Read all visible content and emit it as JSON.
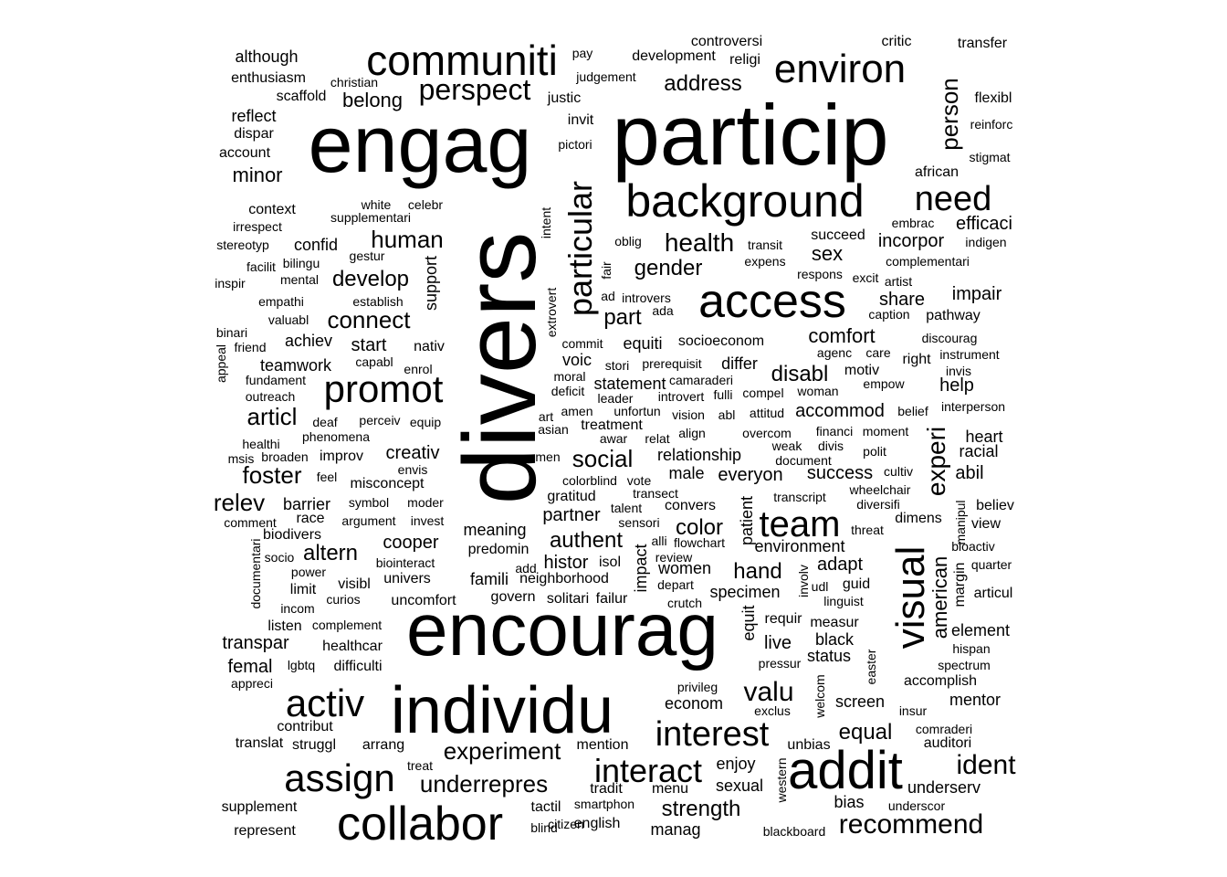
{
  "words": {
    "w0": "divers",
    "w1": "particip",
    "w2": "engag",
    "w3": "encourag",
    "w4": "individu",
    "w5": "addit",
    "w6": "collabor",
    "w7": "access",
    "w8": "background",
    "w9": "communiti",
    "w10": "environ",
    "w11": "visual",
    "w12": "promot",
    "w13": "activ",
    "w14": "team",
    "w15": "assign",
    "w16": "interest",
    "w17": "interact",
    "w18": "particular",
    "w19": "need",
    "w20": "perspect",
    "w21": "experi",
    "w22": "person",
    "w23": "ident",
    "w24": "recommend",
    "w25": "experiment",
    "w26": "underrepres",
    "w27": "social",
    "w28": "valu",
    "w29": "health",
    "w30": "human",
    "w31": "connect",
    "w32": "develop",
    "w33": "foster",
    "w34": "articl",
    "w35": "relev",
    "w36": "gender",
    "w37": "disabl",
    "w38": "address",
    "w39": "part",
    "w40": "belong",
    "w41": "minor",
    "w42": "authent",
    "w43": "hand",
    "w44": "equal",
    "w45": "strength",
    "w46": "altern",
    "w47": "color",
    "w48": "american",
    "w49": "comfort",
    "w50": "sex",
    "w51": "impair",
    "w52": "share",
    "w53": "incorpor",
    "w54": "efficaci",
    "w55": "creativ",
    "w56": "cooper",
    "w57": "partner",
    "w58": "histor",
    "w59": "adapt",
    "w60": "live",
    "w61": "equit",
    "w62": "impact",
    "w63": "support",
    "w64": "start",
    "w65": "achiev",
    "w66": "teamwork",
    "w67": "transpar",
    "w68": "femal",
    "w69": "abil",
    "w70": "help",
    "w71": "success",
    "w72": "everyon",
    "w73": "accommod",
    "w74": "equiti",
    "w75": "differ",
    "w76": "statement",
    "w77": "voic",
    "w78": "relationship",
    "w79": "male",
    "w80": "patient",
    "w81": "environment",
    "w82": "women",
    "w83": "specimen",
    "w84": "barrier",
    "w85": "confid",
    "w86": "meaning",
    "w87": "famili",
    "w88": "enjoy",
    "w89": "sexual",
    "w90": "econom",
    "w91": "bias",
    "w92": "underserv",
    "w93": "mentor",
    "w94": "screen",
    "w95": "status",
    "w96": "black",
    "w97": "element",
    "w98": "although",
    "w99": "enthusiasm",
    "w100": "reflect",
    "w101": "dispar",
    "w102": "account",
    "w103": "scaffold",
    "w104": "christian",
    "w105": "pay",
    "w106": "judgement",
    "w107": "development",
    "w108": "controversi",
    "w109": "religi",
    "w110": "critic",
    "w111": "transfer",
    "w112": "flexibl",
    "w113": "reinforc",
    "w114": "stigmat",
    "w115": "justic",
    "w116": "invit",
    "w117": "pictori",
    "w118": "african",
    "w119": "embrac",
    "w120": "indigen",
    "w121": "complementari",
    "w122": "context",
    "w123": "white",
    "w124": "celebr",
    "w125": "irrespect",
    "w126": "supplementari",
    "w127": "stereotyp",
    "w128": "gestur",
    "w129": "facilit",
    "w130": "bilingu",
    "w131": "inspir",
    "w132": "mental",
    "w133": "empathi",
    "w134": "establish",
    "w135": "intent",
    "w136": "oblig",
    "w137": "transit",
    "w138": "expens",
    "w139": "succeed",
    "w140": "respons",
    "w141": "excit",
    "w142": "artist",
    "w143": "fair",
    "w144": "ad",
    "w145": "introvers",
    "w146": "ada",
    "w147": "caption",
    "w148": "pathway",
    "w149": "binari",
    "w150": "valuabl",
    "w151": "friend",
    "w152": "appeal",
    "w153": "extrovert",
    "w154": "commit",
    "w155": "socioeconom",
    "w156": "agenc",
    "w157": "discourag",
    "w158": "instrument",
    "w159": "care",
    "w160": "right",
    "w161": "nativ",
    "w162": "capabl",
    "w163": "enrol",
    "w164": "stori",
    "w165": "prerequisit",
    "w166": "motiv",
    "w167": "invis",
    "w168": "fundament",
    "w169": "outreach",
    "w170": "moral",
    "w171": "deficit",
    "w172": "camaraderi",
    "w173": "fulli",
    "w174": "compel",
    "w175": "woman",
    "w176": "empow",
    "w177": "leader",
    "w178": "introvert",
    "w179": "interperson",
    "w180": "amen",
    "w181": "unfortun",
    "w182": "abl",
    "w183": "attitud",
    "w184": "belief",
    "w185": "deaf",
    "w186": "perceiv",
    "w187": "equip",
    "w188": "art",
    "w189": "vision",
    "w190": "asian",
    "w191": "awar",
    "w192": "treatment",
    "w193": "align",
    "w194": "overcom",
    "w195": "financi",
    "w196": "moment",
    "w197": "healthi",
    "w198": "phenomena",
    "w199": "relat",
    "w200": "weak",
    "w201": "divis",
    "w202": "polit",
    "w203": "heart",
    "w204": "racial",
    "w205": "msis",
    "w206": "broaden",
    "w207": "improv",
    "w208": "men",
    "w209": "document",
    "w210": "feel",
    "w211": "misconcept",
    "w212": "envis",
    "w213": "colorblind",
    "w214": "vote",
    "w215": "cultiv",
    "w216": "wheelchair",
    "w217": "diversifi",
    "w218": "transect",
    "w219": "transcript",
    "w220": "symbol",
    "w221": "moder",
    "w222": "gratitud",
    "w223": "talent",
    "w224": "convers",
    "w225": "believ",
    "w226": "race",
    "w227": "argument",
    "w228": "invest",
    "w229": "sensori",
    "w230": "threat",
    "w231": "dimens",
    "w232": "comment",
    "w233": "biodivers",
    "w234": "alli",
    "w235": "flowchart",
    "w236": "manipul",
    "w237": "view",
    "w238": "bioactiv",
    "w239": "socio",
    "w240": "predomin",
    "w241": "isol",
    "w242": "review",
    "w243": "quarter",
    "w244": "documentari",
    "w245": "biointeract",
    "w246": "power",
    "w247": "add",
    "w248": "univers",
    "w249": "neighborhood",
    "w250": "depart",
    "w251": "udl",
    "w252": "guid",
    "w253": "involv",
    "w254": "margin",
    "w255": "articul",
    "w256": "limit",
    "w257": "visibl",
    "w258": "curios",
    "w259": "incom",
    "w260": "uncomfort",
    "w261": "govern",
    "w262": "solitari",
    "w263": "failur",
    "w264": "crutch",
    "w265": "linguist",
    "w266": "requir",
    "w267": "measur",
    "w268": "listen",
    "w269": "complement",
    "w270": "healthcar",
    "w271": "hispan",
    "w272": "pressur",
    "w273": "spectrum",
    "w274": "lgbtq",
    "w275": "difficulti",
    "w276": "easter",
    "w277": "accomplish",
    "w278": "welcom",
    "w279": "appreci",
    "w280": "privileg",
    "w281": "exclus",
    "w282": "insur",
    "w283": "contribut",
    "w284": "translat",
    "w285": "struggl",
    "w286": "arrang",
    "w287": "mention",
    "w288": "unbias",
    "w289": "comraderi",
    "w290": "auditori",
    "w291": "western",
    "w292": "treat",
    "w293": "tradit",
    "w294": "menu",
    "w295": "supplement",
    "w296": "tactil",
    "w297": "smartphon",
    "w298": "underscor",
    "w299": "citizen",
    "w300": "represent",
    "w301": "blind",
    "w302": "english",
    "w303": "manag",
    "w304": "blackboard"
  }
}
